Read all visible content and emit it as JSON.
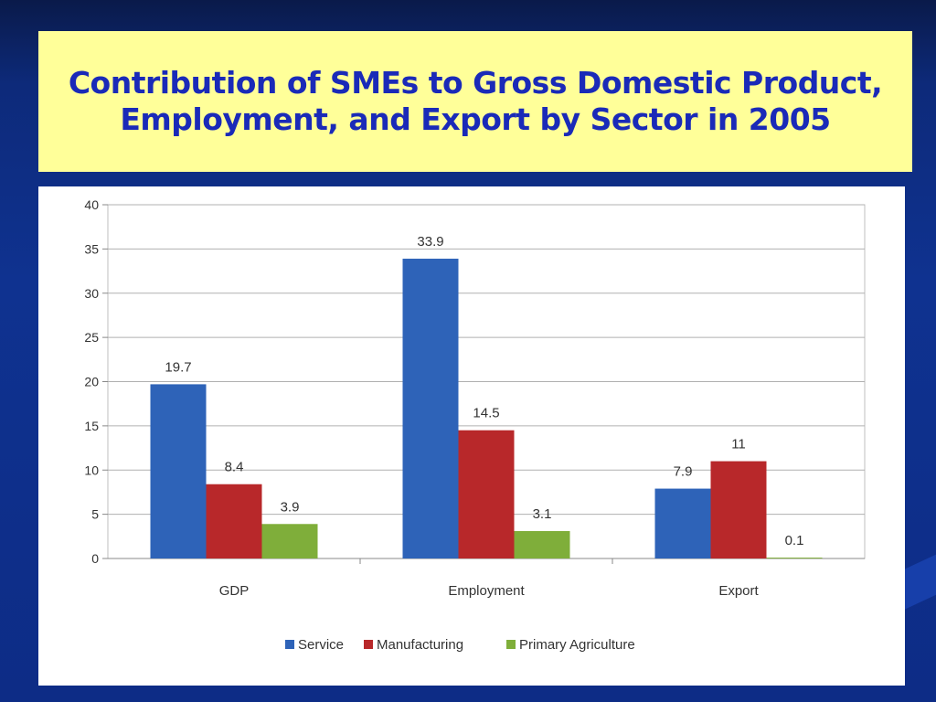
{
  "title_line1": "Contribution of SMEs to Gross Domestic Product,",
  "title_line2": "Employment, and Export by Sector in 2005",
  "colors": {
    "title_bg": "#ffff99",
    "title_text": "#1a2ab8",
    "slide_bg": "#0f3290"
  },
  "chart_data": {
    "type": "bar",
    "categories": [
      "GDP",
      "Employment",
      "Export"
    ],
    "series": [
      {
        "name": "Service",
        "color": "#2e63b8",
        "values": [
          19.7,
          33.9,
          7.9
        ],
        "labels": [
          "19.7",
          "33.9",
          "7.9"
        ]
      },
      {
        "name": "Manufacturing",
        "color": "#b8282a",
        "values": [
          8.4,
          14.5,
          11
        ],
        "labels": [
          "8.4",
          "14.5",
          "11"
        ]
      },
      {
        "name": "Primary Agriculture",
        "color": "#7fae3a",
        "values": [
          3.9,
          3.1,
          0.1
        ],
        "labels": [
          "3.9",
          "3.1",
          "0.1"
        ]
      }
    ],
    "ylim": [
      0,
      40
    ],
    "yticks": [
      0,
      5,
      10,
      15,
      20,
      25,
      30,
      35,
      40
    ],
    "grid": true,
    "legend": "bottom",
    "title": "Contribution of SMEs to Gross Domestic Product, Employment, and Export by Sector in 2005",
    "xlabel": "",
    "ylabel": ""
  }
}
